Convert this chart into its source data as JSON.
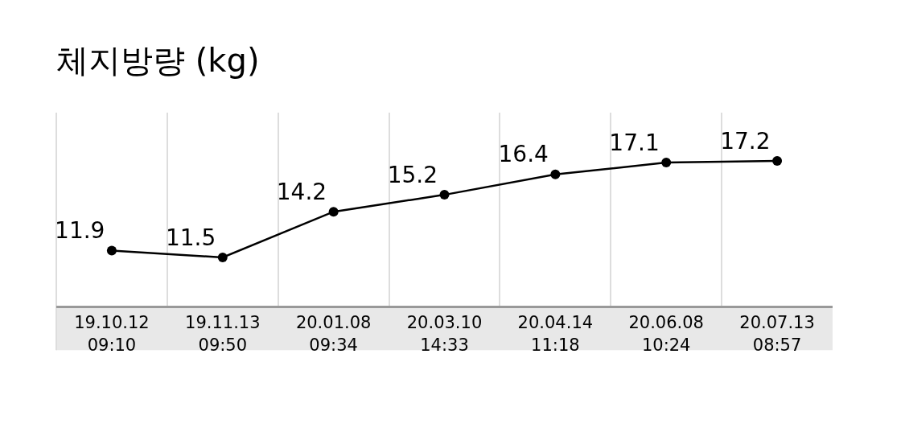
{
  "chart_data": {
    "type": "line",
    "title": "체지방량 (kg)",
    "categories": [
      "19.10.12\n09:10",
      "19.11.13\n09:50",
      "20.01.08\n09:34",
      "20.03.10\n14:33",
      "20.04.14\n11:18",
      "20.06.08\n10:24",
      "20.07.13\n08:57"
    ],
    "series": [
      {
        "color": "#000000",
        "values": [
          11.9,
          11.5,
          14.2,
          15.2,
          16.4,
          17.1,
          17.2
        ]
      }
    ],
    "data_labels": true,
    "marker": "circle",
    "line_style": "solid",
    "grid": "x"
  }
}
